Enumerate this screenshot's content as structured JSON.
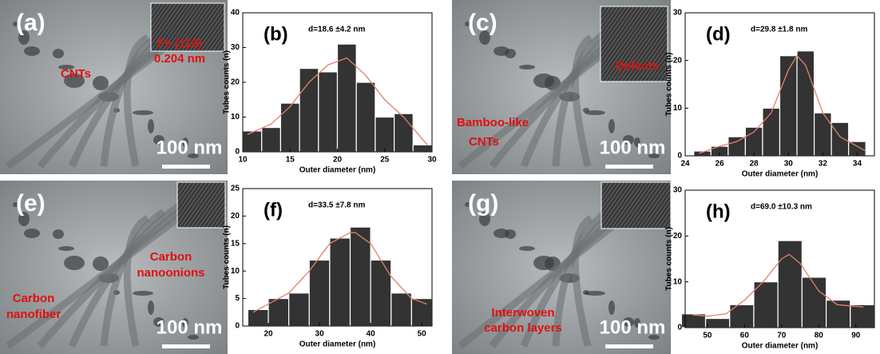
{
  "images": [
    {
      "label": "(a)",
      "texts": [
        "CNTs",
        "Fe (110)",
        "0.204 nm"
      ],
      "scale": "100 nm"
    },
    {
      "label": "(c)",
      "texts": [
        "Defects",
        "Bamboo-like",
        "CNTs"
      ],
      "scale": "100 nm"
    },
    {
      "label": "(e)",
      "texts": [
        "Carbon",
        "nanoonions",
        "Carbon",
        "nanofiber"
      ],
      "scale": "100 nm"
    },
    {
      "label": "(g)",
      "texts": [
        "Interwoven",
        "carbon layers"
      ],
      "scale": "100 nm"
    }
  ],
  "chart_data": [
    {
      "type": "histogram",
      "label": "(b)",
      "annotation": "d=18.6 ±4.2 nm",
      "xlabel": "Outer diameter (nm)",
      "ylabel": "Tubes counts (n)",
      "color": "#333333",
      "bins": [
        10,
        12,
        14,
        16,
        18,
        20,
        22,
        24,
        26,
        28,
        30
      ],
      "values": [
        6,
        7,
        14,
        24,
        23,
        31,
        20,
        10,
        11,
        2
      ],
      "xlim": [
        10,
        30
      ],
      "ylim": [
        0,
        40
      ],
      "xticks": [
        10,
        15,
        20,
        25,
        30
      ],
      "yticks": [
        0,
        10,
        20,
        30,
        40
      ],
      "fit": {
        "color": "#e0826a",
        "x": [
          10.5,
          13,
          15,
          17,
          19,
          21,
          23,
          25,
          27,
          29.5
        ],
        "y": [
          5,
          8,
          13,
          20,
          25,
          27,
          22,
          15,
          10,
          2
        ]
      }
    },
    {
      "type": "histogram",
      "label": "(d)",
      "annotation": "d=29.8 ±1.8 nm",
      "xlabel": "Outer diameter (nm)",
      "ylabel": "Tubes counts (n)",
      "color": "#333333",
      "bins": [
        24.5,
        25.5,
        26.5,
        27.5,
        28.5,
        29.5,
        30.5,
        31.5,
        32.5,
        33.5,
        34.5
      ],
      "values": [
        1,
        2,
        4,
        6,
        10,
        21,
        22,
        9,
        7,
        3
      ],
      "xlim": [
        24,
        35
      ],
      "ylim": [
        0,
        30
      ],
      "xticks": [
        24,
        26,
        28,
        30,
        32,
        34
      ],
      "yticks": [
        0,
        10,
        20,
        30
      ],
      "fit": {
        "color": "#e0826a",
        "x": [
          24.8,
          26,
          27,
          28,
          29,
          30,
          30.5,
          31,
          32,
          33,
          34.5
        ],
        "y": [
          0.5,
          2,
          3,
          5,
          9,
          18,
          21,
          19,
          9,
          4,
          1
        ]
      }
    },
    {
      "type": "histogram",
      "label": "(f)",
      "annotation": "d=33.5 ±7.8 nm",
      "xlabel": "Outer diameter (nm)",
      "ylabel": "Tubes counts (n)",
      "color": "#333333",
      "bins": [
        16,
        20,
        24,
        28,
        32,
        36,
        40,
        44,
        48,
        52
      ],
      "values": [
        3,
        5,
        6,
        12,
        16,
        18,
        12,
        6,
        5
      ],
      "xlim": [
        15,
        52
      ],
      "ylim": [
        0,
        25
      ],
      "xticks": [
        20,
        30,
        40,
        50
      ],
      "yticks": [
        0,
        5,
        10,
        15,
        20,
        25
      ],
      "fit": {
        "color": "#e0826a",
        "x": [
          17,
          20,
          24,
          28,
          32,
          36,
          37,
          40,
          44,
          48,
          51
        ],
        "y": [
          2.5,
          4,
          6,
          10,
          15,
          17,
          17,
          15,
          9,
          5,
          4
        ]
      }
    },
    {
      "type": "histogram",
      "label": "(h)",
      "annotation": "d=69.0 ±10.3 nm",
      "xlabel": "Outer diameter (nm)",
      "ylabel": "Tubes counts (n)",
      "color": "#333333",
      "bins": [
        43,
        49.5,
        56,
        62.5,
        69,
        75.5,
        82,
        88.5,
        95
      ],
      "values": [
        3,
        2,
        5,
        10,
        19,
        11,
        6,
        5
      ],
      "xlim": [
        44,
        95
      ],
      "ylim": [
        0,
        30
      ],
      "xticks": [
        50,
        60,
        70,
        80,
        90
      ],
      "yticks": [
        0,
        10,
        20,
        30
      ],
      "fit": {
        "color": "#e0826a",
        "x": [
          46,
          50,
          55,
          60,
          65,
          70,
          72,
          75,
          80,
          85,
          92
        ],
        "y": [
          2.8,
          2.5,
          3,
          6,
          10,
          15,
          16,
          14,
          8,
          5,
          4.5
        ]
      }
    }
  ]
}
